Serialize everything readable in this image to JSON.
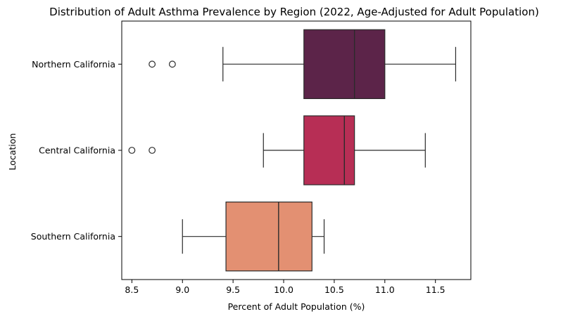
{
  "chart_data": {
    "type": "boxplot",
    "orientation": "horizontal",
    "title": "Distribution of Adult Asthma Prevalence by Region (2022, Age-Adjusted for Adult Population)",
    "xlabel": "Percent of Adult Population (%)",
    "ylabel": "Location",
    "xlim": [
      8.4,
      11.85
    ],
    "xticks": [
      8.5,
      9.0,
      9.5,
      10.0,
      10.5,
      11.0,
      11.5
    ],
    "xtick_labels": [
      "8.5",
      "9.0",
      "9.5",
      "10.0",
      "10.5",
      "11.0",
      "11.5"
    ],
    "grid": false,
    "categories": [
      "Northern California",
      "Central California",
      "Southern California"
    ],
    "boxes": [
      {
        "category": "Northern California",
        "whisker_low": 9.4,
        "q1": 10.2,
        "median": 10.7,
        "q3": 11.0,
        "whisker_high": 11.7,
        "outliers": [
          8.7,
          8.9
        ],
        "color": "#5c2449"
      },
      {
        "category": "Central California",
        "whisker_low": 9.8,
        "q1": 10.2,
        "median": 10.6,
        "q3": 10.7,
        "whisker_high": 11.4,
        "outliers": [
          8.5,
          8.7
        ],
        "color": "#b72e55"
      },
      {
        "category": "Southern California",
        "whisker_low": 9.0,
        "q1": 9.43,
        "median": 9.95,
        "q3": 10.28,
        "whisker_high": 10.4,
        "outliers": [],
        "color": "#e39072"
      }
    ]
  }
}
